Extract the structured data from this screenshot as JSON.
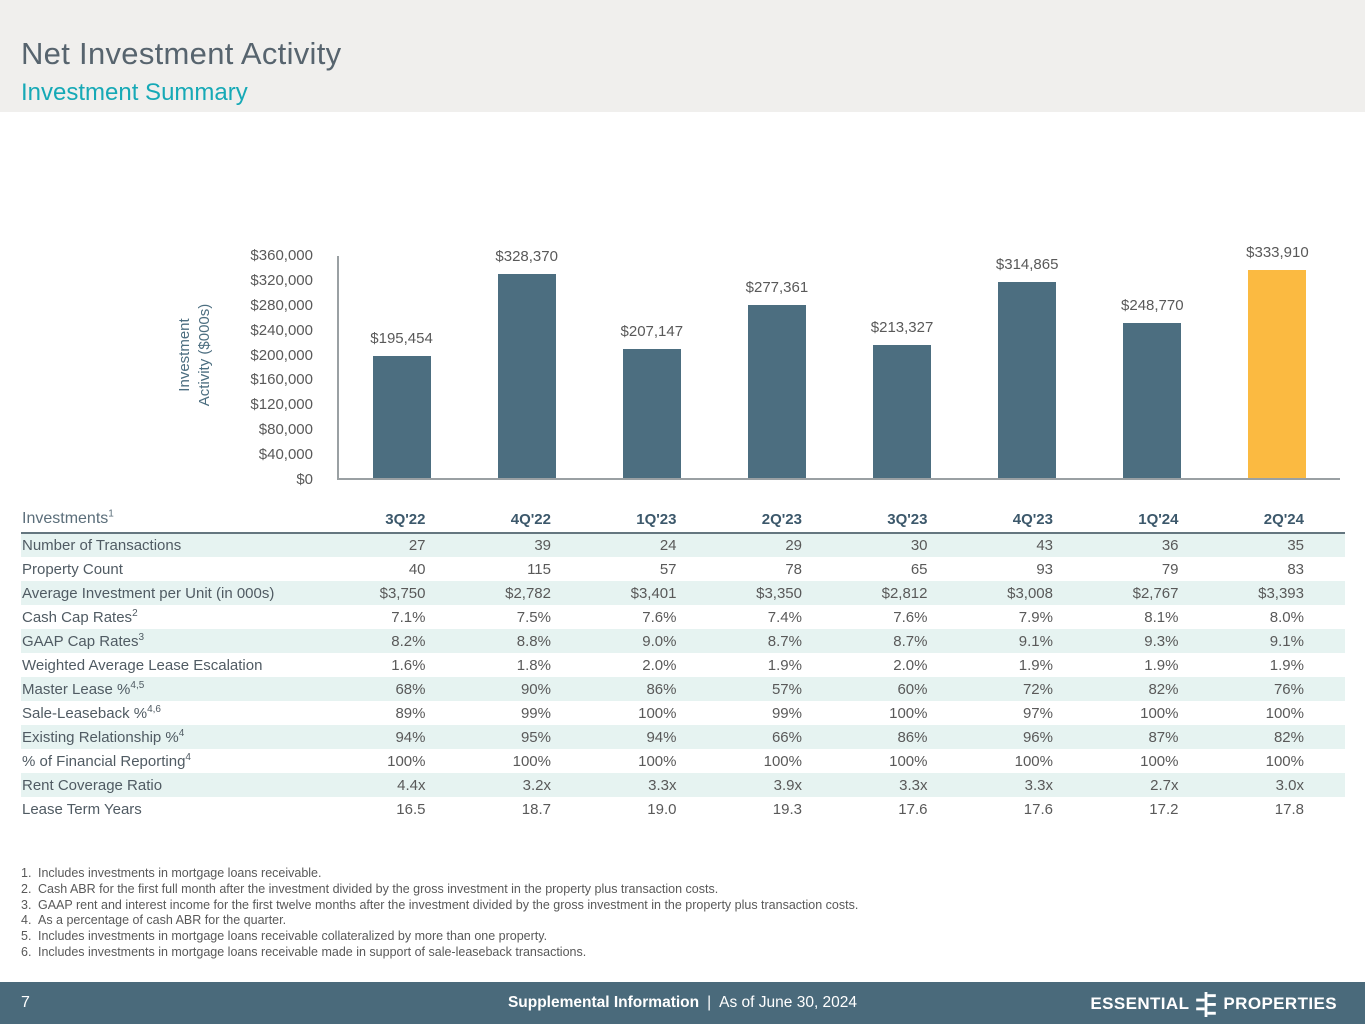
{
  "header": {
    "title": "Net Investment Activity",
    "subtitle": "Investment Summary"
  },
  "chart_data": {
    "type": "bar",
    "title": "",
    "ylabel": "Investment Activity ($000s)",
    "ylabel_lines": [
      "Investment",
      "Activity ($000s)"
    ],
    "xlabel": "",
    "categories": [
      "3Q'22",
      "4Q'22",
      "1Q'23",
      "2Q'23",
      "3Q'23",
      "4Q'23",
      "1Q'24",
      "2Q'24"
    ],
    "values": [
      195454,
      328370,
      207147,
      277361,
      213327,
      314865,
      248770,
      333910
    ],
    "value_labels": [
      "$195,454",
      "$328,370",
      "$207,147",
      "$277,361",
      "$213,327",
      "$314,865",
      "$248,770",
      "$333,910"
    ],
    "ylim": [
      0,
      360000
    ],
    "ytick_labels": [
      "$360,000",
      "$320,000",
      "$280,000",
      "$240,000",
      "$200,000",
      "$160,000",
      "$120,000",
      "$80,000",
      "$40,000",
      "$0"
    ],
    "grid": false,
    "legend": false,
    "highlight_index": 7,
    "bar_color": "#4c6e80",
    "highlight_color": "#fbba41"
  },
  "table": {
    "corner_label": "Investments",
    "corner_superscript": "1",
    "columns": [
      "3Q'22",
      "4Q'22",
      "1Q'23",
      "2Q'23",
      "3Q'23",
      "4Q'23",
      "1Q'24",
      "2Q'24"
    ],
    "rows": [
      {
        "label": "Number of Transactions",
        "sup": "",
        "values": [
          "27",
          "39",
          "24",
          "29",
          "30",
          "43",
          "36",
          "35"
        ]
      },
      {
        "label": "Property Count",
        "sup": "",
        "values": [
          "40",
          "115",
          "57",
          "78",
          "65",
          "93",
          "79",
          "83"
        ]
      },
      {
        "label": "Average Investment per Unit (in 000s)",
        "sup": "",
        "values": [
          "$3,750",
          "$2,782",
          "$3,401",
          "$3,350",
          "$2,812",
          "$3,008",
          "$2,767",
          "$3,393"
        ]
      },
      {
        "label": "Cash Cap Rates",
        "sup": "2",
        "values": [
          "7.1%",
          "7.5%",
          "7.6%",
          "7.4%",
          "7.6%",
          "7.9%",
          "8.1%",
          "8.0%"
        ]
      },
      {
        "label": "GAAP Cap Rates",
        "sup": "3",
        "values": [
          "8.2%",
          "8.8%",
          "9.0%",
          "8.7%",
          "8.7%",
          "9.1%",
          "9.3%",
          "9.1%"
        ]
      },
      {
        "label": "Weighted Average Lease Escalation",
        "sup": "",
        "values": [
          "1.6%",
          "1.8%",
          "2.0%",
          "1.9%",
          "2.0%",
          "1.9%",
          "1.9%",
          "1.9%"
        ]
      },
      {
        "label": "Master Lease %",
        "sup": "4,5",
        "values": [
          "68%",
          "90%",
          "86%",
          "57%",
          "60%",
          "72%",
          "82%",
          "76%"
        ]
      },
      {
        "label": "Sale-Leaseback %",
        "sup": "4,6",
        "values": [
          "89%",
          "99%",
          "100%",
          "99%",
          "100%",
          "97%",
          "100%",
          "100%"
        ]
      },
      {
        "label": "Existing Relationship %",
        "sup": "4",
        "values": [
          "94%",
          "95%",
          "94%",
          "66%",
          "86%",
          "96%",
          "87%",
          "82%"
        ]
      },
      {
        "label": "% of Financial Reporting",
        "sup": "4",
        "values": [
          "100%",
          "100%",
          "100%",
          "100%",
          "100%",
          "100%",
          "100%",
          "100%"
        ]
      },
      {
        "label": "Rent Coverage Ratio",
        "sup": "",
        "values": [
          "4.4x",
          "3.2x",
          "3.3x",
          "3.9x",
          "3.3x",
          "3.3x",
          "2.7x",
          "3.0x"
        ]
      },
      {
        "label": "Lease Term Years",
        "sup": "",
        "values": [
          "16.5",
          "18.7",
          "19.0",
          "19.3",
          "17.6",
          "17.6",
          "17.2",
          "17.8"
        ]
      }
    ]
  },
  "footnotes": [
    {
      "num": "1.",
      "text": "Includes investments in mortgage loans receivable."
    },
    {
      "num": "2.",
      "text": "Cash ABR for the first full month after the investment divided by the gross investment in the property plus transaction costs."
    },
    {
      "num": "3.",
      "text": "GAAP rent and interest income for the first twelve months after the investment divided by the gross investment in the property plus transaction costs."
    },
    {
      "num": "4.",
      "text": "As a percentage of cash ABR for the quarter."
    },
    {
      "num": "5.",
      "text": "Includes investments in mortgage loans receivable collateralized by more than one property."
    },
    {
      "num": "6.",
      "text": "Includes investments in mortgage loans receivable made in support of sale-leaseback transactions."
    }
  ],
  "footer": {
    "page_number": "7",
    "center_bold": "Supplemental Information",
    "separator": "|",
    "center_regular": "As of June 30, 2024",
    "logo_left": "ESSENTIAL",
    "logo_right": "PROPERTIES"
  },
  "colors": {
    "header_band": "#f0efed",
    "title": "#57646e",
    "subtitle_teal": "#16a9b6",
    "bar_slate": "#4c6e80",
    "bar_highlight": "#fbba41",
    "table_stripe": "#e6f3f1",
    "footer_bar": "#4a6a7b",
    "text_gray": "#595959"
  }
}
